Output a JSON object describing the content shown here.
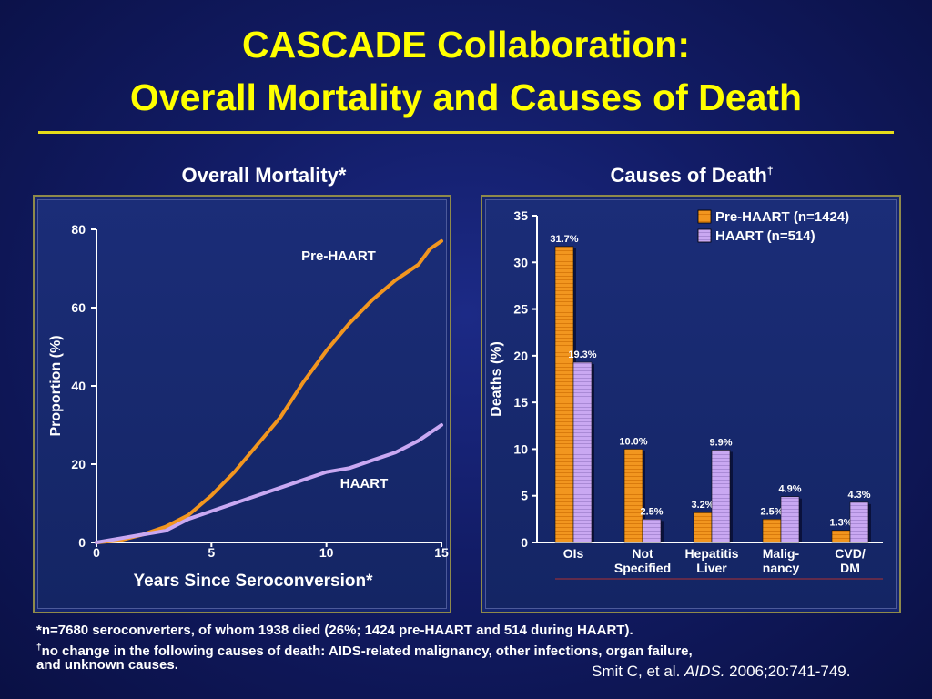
{
  "slide": {
    "title_line1": "CASCADE Collaboration:",
    "title_line2": "Overall Mortality and Causes of Death",
    "left_heading": "Overall Mortality*",
    "right_heading": "Causes of Death",
    "right_heading_mark": "†",
    "footnote_line1": "*n=7680 seroconverters, of whom 1938 died (26%; 1424 pre-HAART and 514 during HAART).",
    "footnote_line2_mark": "†",
    "footnote_line2": "no change in the following causes of death: AIDS-related malignancy, other infections, organ failure,",
    "footnote_line3": "and unknown causes.",
    "citation_authors": "Smit C, et al. ",
    "citation_journal": "AIDS.",
    "citation_rest": " 2006;20:741-749."
  },
  "colors": {
    "pre_haart": "#f2961f",
    "haart": "#c9a8f2",
    "title": "#ffff00",
    "background": "#121c66"
  },
  "chart_data": [
    {
      "type": "line",
      "title": "Overall Mortality*",
      "xlabel": "Years Since Seroconversion*",
      "ylabel": "Proportion (%)",
      "xlim": [
        0,
        15
      ],
      "ylim": [
        0,
        80
      ],
      "xticks": [
        0,
        5,
        10,
        15
      ],
      "yticks": [
        0,
        20,
        40,
        60,
        80
      ],
      "series": [
        {
          "name": "Pre-HAART",
          "x": [
            0,
            1,
            2,
            3,
            4,
            5,
            6,
            7,
            8,
            9,
            10,
            11,
            12,
            13,
            14,
            14.5,
            15
          ],
          "y": [
            0,
            0.5,
            2,
            4,
            7,
            12,
            18,
            25,
            32,
            41,
            49,
            56,
            62,
            67,
            71,
            75,
            77
          ]
        },
        {
          "name": "HAART",
          "x": [
            0,
            1,
            2,
            3,
            4,
            5,
            6,
            7,
            8,
            9,
            10,
            11,
            12,
            13,
            14,
            15
          ],
          "y": [
            0,
            1,
            2,
            3,
            6,
            8,
            10,
            12,
            14,
            16,
            18,
            19,
            21,
            23,
            26,
            30
          ]
        }
      ]
    },
    {
      "type": "bar",
      "title": "Causes of Death",
      "ylabel": "Deaths (%)",
      "ylim": [
        0,
        35
      ],
      "yticks": [
        0,
        5,
        10,
        15,
        20,
        25,
        30,
        35
      ],
      "categories": [
        "OIs",
        "Not\nSpecified",
        "Hepatitis\nLiver",
        "Malig-\nnancy",
        "CVD/\nDM"
      ],
      "legend_position": "top-right",
      "series": [
        {
          "name": "Pre-HAART (n=1424)",
          "values": [
            31.7,
            10.0,
            3.2,
            2.5,
            1.3
          ],
          "labels": [
            "31.7%",
            "10.0%",
            "3.2%",
            "2.5%",
            "1.3%"
          ]
        },
        {
          "name": "HAART (n=514)",
          "values": [
            19.3,
            2.5,
            9.9,
            4.9,
            4.3
          ],
          "labels": [
            "19.3%",
            "2.5%",
            "9.9%",
            "4.9%",
            "4.3%"
          ]
        }
      ]
    }
  ]
}
